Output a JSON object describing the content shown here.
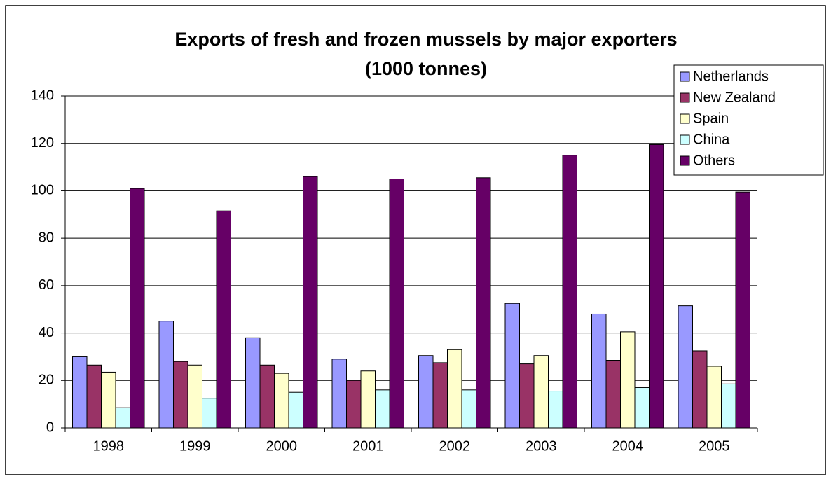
{
  "chart_data": {
    "type": "bar",
    "title": "Exports of fresh and frozen mussels by major exporters",
    "subtitle": "(1000 tonnes)",
    "categories": [
      "1998",
      "1999",
      "2000",
      "2001",
      "2002",
      "2003",
      "2004",
      "2005"
    ],
    "series": [
      {
        "name": "Netherlands",
        "color": "#9999ff",
        "values": [
          30,
          45,
          38,
          29,
          30.5,
          52.5,
          48,
          51.5
        ]
      },
      {
        "name": "New Zealand",
        "color": "#993366",
        "values": [
          26.5,
          28,
          26.5,
          20,
          27.5,
          27,
          28.5,
          32.5
        ]
      },
      {
        "name": "Spain",
        "color": "#ffffcc",
        "values": [
          23.5,
          26.5,
          23,
          24,
          33,
          30.5,
          40.5,
          26
        ]
      },
      {
        "name": "China",
        "color": "#ccffff",
        "values": [
          8.5,
          12.5,
          15,
          16,
          16,
          15.5,
          17,
          18.5
        ]
      },
      {
        "name": "Others",
        "color": "#660066",
        "values": [
          101,
          91.5,
          106,
          105,
          105.5,
          115,
          119.5,
          99.5
        ]
      }
    ],
    "ylim": [
      0,
      140
    ],
    "yticks": [
      0,
      20,
      40,
      60,
      80,
      100,
      120,
      140
    ],
    "grid": true,
    "legend": "top-right"
  }
}
